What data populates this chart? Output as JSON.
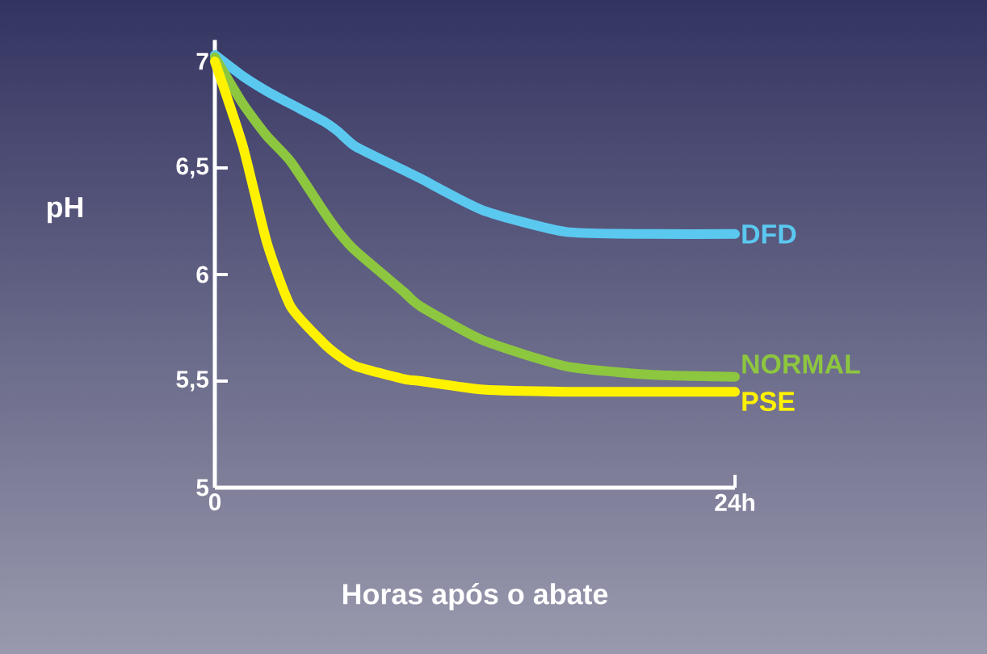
{
  "chart_data": {
    "type": "line",
    "xlabel": "Horas após o abate",
    "ylabel": "pH",
    "x": [
      0,
      1.3,
      2.4,
      3.5,
      5,
      5.7,
      6.5,
      8.7,
      9.5,
      12.4,
      16.2,
      20.1,
      24
    ],
    "xlim": [
      0,
      24
    ],
    "xticks": [
      0,
      {
        "value": 24,
        "label": "24h"
      }
    ],
    "ylim": [
      5,
      7.1
    ],
    "yticks": [
      {
        "value": 5,
        "label": "5"
      },
      {
        "value": 5.5,
        "label": "5,5"
      },
      {
        "value": 6,
        "label": "6"
      },
      {
        "value": 6.5,
        "label": "6,5"
      },
      {
        "value": 7,
        "label": "7"
      }
    ],
    "grid": false,
    "legend": false,
    "marker": "none",
    "line_style": "solid",
    "series": [
      {
        "name": "DFD",
        "color": "#5bc8f0",
        "values": [
          7.03,
          6.93,
          6.86,
          6.8,
          6.72,
          6.67,
          6.6,
          6.49,
          6.45,
          6.3,
          6.2,
          6.19,
          6.19
        ]
      },
      {
        "name": "NORMAL",
        "color": "#8dc63f",
        "values": [
          7.02,
          6.8,
          6.65,
          6.53,
          6.3,
          6.2,
          6.11,
          5.92,
          5.85,
          5.69,
          5.57,
          5.53,
          5.52
        ]
      },
      {
        "name": "PSE",
        "color": "#fff200",
        "values": [
          7.0,
          6.6,
          6.15,
          5.85,
          5.68,
          5.62,
          5.57,
          5.51,
          5.5,
          5.46,
          5.45,
          5.45,
          5.45
        ]
      }
    ]
  }
}
